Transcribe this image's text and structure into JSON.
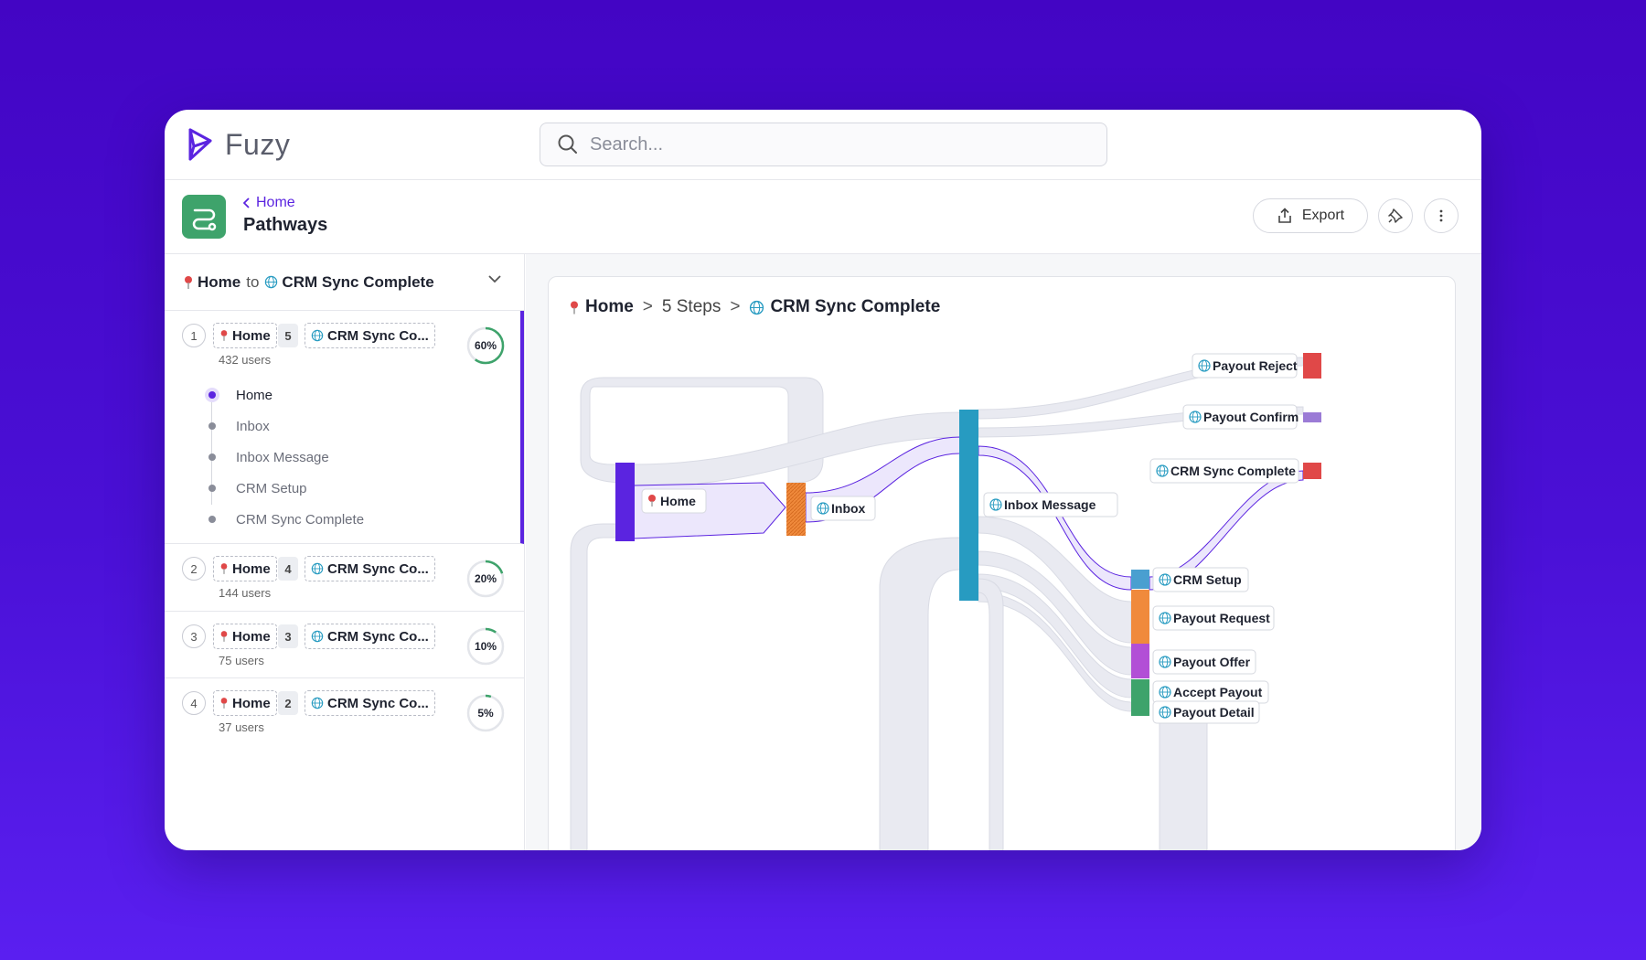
{
  "app": {
    "name": "Fuzy"
  },
  "search": {
    "placeholder": "Search..."
  },
  "header": {
    "breadcrumb": "Home",
    "title": "Pathways",
    "export_label": "Export"
  },
  "path_selector": {
    "from": "Home",
    "to_word": "to",
    "to": "CRM Sync Complete"
  },
  "routes": [
    {
      "num": "1",
      "from": "Home",
      "steps": "5",
      "to": "CRM Sync Co...",
      "users": "432 users",
      "pct": "60%",
      "pct_value": 60
    },
    {
      "num": "2",
      "from": "Home",
      "steps": "4",
      "to": "CRM Sync Co...",
      "users": "144 users",
      "pct": "20%",
      "pct_value": 20
    },
    {
      "num": "3",
      "from": "Home",
      "steps": "3",
      "to": "CRM Sync Co...",
      "users": "75 users",
      "pct": "10%",
      "pct_value": 10
    },
    {
      "num": "4",
      "from": "Home",
      "steps": "2",
      "to": "CRM Sync Co...",
      "users": "37 users",
      "pct": "5%",
      "pct_value": 5
    }
  ],
  "route_steps": [
    "Home",
    "Inbox",
    "Inbox Message",
    "CRM Setup",
    "CRM Sync Complete"
  ],
  "chart_header": {
    "from": "Home",
    "sep": ">",
    "steps": "5 Steps",
    "to": "CRM Sync Complete"
  },
  "nodes": {
    "home": "Home",
    "inbox": "Inbox",
    "inbox_message": "Inbox Message",
    "payout_reject": "Payout Reject",
    "payout_confirm": "Payout Confirm",
    "crm_sync_complete": "CRM Sync Complete",
    "crm_setup": "CRM Setup",
    "payout_request": "Payout Request",
    "payout_offer": "Payout Offer",
    "accept_payout": "Accept Payout",
    "payout_detail": "Payout Detail"
  },
  "colors": {
    "accent": "#5b24e0",
    "home": "#5b24e0",
    "inbox": "#f08a3c",
    "inbox_message": "#279bc1",
    "payout_reject": "#e04848",
    "payout_confirm": "#9b7bd6",
    "crm_sync_complete": "#e04848",
    "crm_setup": "#4a9fd0",
    "payout_request": "#f08a3c",
    "payout_offer": "#b24fd6",
    "accept_payout": "#3ea36b",
    "payout_detail": "#3ea36b"
  }
}
